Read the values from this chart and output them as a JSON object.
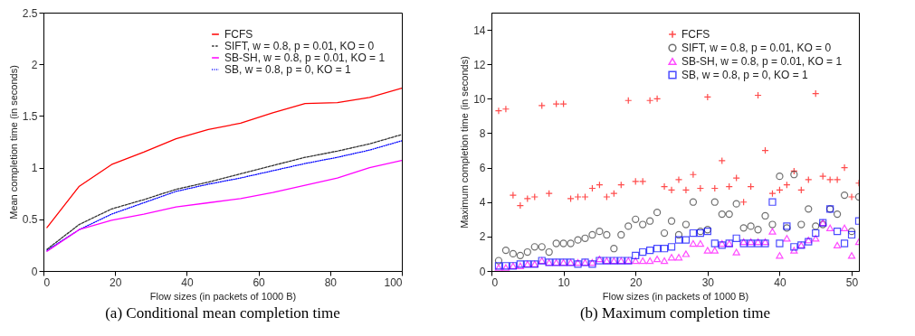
{
  "chart_data": [
    {
      "type": "line",
      "title": "(a) Conditional mean completion time",
      "xlabel": "Flow sizes (in packets of 1000 B)",
      "ylabel": "Mean completion time (in seconds)",
      "xlim": [
        0,
        100
      ],
      "xticks": [
        0,
        20,
        40,
        60,
        80,
        100
      ],
      "ylim": [
        0,
        2.5
      ],
      "yticks": [
        0,
        0.5,
        1,
        1.5,
        2,
        2.5
      ],
      "legend": "top right",
      "x": [
        1,
        10,
        19,
        28,
        37,
        46,
        55,
        64,
        73,
        82,
        91,
        100
      ],
      "series": [
        {
          "name": "FCFS",
          "color": "#ff0000",
          "line_style": "solid",
          "values": [
            0.42,
            0.82,
            1.03,
            1.15,
            1.28,
            1.37,
            1.43,
            1.53,
            1.62,
            1.63,
            1.68,
            1.77
          ]
        },
        {
          "name": "SIFT, w = 0.8, p = 0.01, KO = 0",
          "color": "#333333",
          "line_style": "dashed",
          "values": [
            0.21,
            0.45,
            0.6,
            0.69,
            0.79,
            0.86,
            0.94,
            1.02,
            1.1,
            1.16,
            1.23,
            1.32
          ]
        },
        {
          "name": "SB-SH, w = 0.8, p = 0.01, KO = 1",
          "color": "#ff00ff",
          "line_style": "solid",
          "values": [
            0.19,
            0.4,
            0.49,
            0.55,
            0.62,
            0.66,
            0.7,
            0.76,
            0.83,
            0.9,
            1.0,
            1.07
          ]
        },
        {
          "name": "SB, w = 0.8, p = 0, KO = 1",
          "color": "#0000ff",
          "line_style": "dotted",
          "values": [
            0.2,
            0.4,
            0.55,
            0.66,
            0.77,
            0.84,
            0.9,
            0.97,
            1.04,
            1.1,
            1.17,
            1.26
          ]
        }
      ]
    },
    {
      "type": "scatter",
      "title": "(b) Maximum completion time",
      "xlabel": "Flow sizes (in packets of 1000 B)",
      "ylabel": "Maximum completion time (in seconds)",
      "xlim": [
        0,
        51
      ],
      "xticks": [
        0,
        10,
        20,
        30,
        40,
        50
      ],
      "ylim": [
        0,
        15
      ],
      "yticks": [
        0,
        2,
        4,
        6,
        8,
        10,
        12,
        14
      ],
      "legend": "top right",
      "x": [
        1,
        2,
        3,
        4,
        5,
        6,
        7,
        8,
        9,
        10,
        11,
        12,
        13,
        14,
        15,
        16,
        17,
        18,
        19,
        20,
        21,
        22,
        23,
        24,
        25,
        26,
        27,
        28,
        29,
        30,
        31,
        32,
        33,
        34,
        35,
        36,
        37,
        38,
        39,
        40,
        41,
        42,
        43,
        44,
        45,
        46,
        47,
        48,
        49,
        50,
        51
      ],
      "series": [
        {
          "name": "FCFS",
          "color": "#ff0000",
          "marker": "cross",
          "values": [
            9.3,
            9.4,
            4.4,
            3.8,
            4.2,
            4.3,
            9.6,
            4.5,
            9.7,
            9.7,
            4.2,
            4.3,
            4.3,
            4.8,
            5.0,
            4.3,
            4.5,
            5.0,
            9.9,
            5.2,
            5.2,
            9.9,
            10.0,
            4.9,
            4.7,
            5.3,
            4.7,
            5.6,
            4.8,
            10.1,
            4.8,
            6.4,
            4.9,
            5.4,
            4.0,
            4.9,
            10.2,
            7.0,
            4.5,
            4.7,
            5.0,
            5.8,
            4.7,
            5.3,
            10.3,
            5.5,
            5.3,
            5.3,
            6.0,
            4.3,
            5.1
          ]
        },
        {
          "name": "SIFT, w = 0.8, p = 0.01, KO = 0",
          "color": "#333333",
          "marker": "circle",
          "values": [
            0.6,
            1.2,
            1.0,
            0.9,
            1.1,
            1.4,
            1.4,
            1.1,
            1.6,
            1.6,
            1.6,
            1.8,
            1.9,
            2.1,
            2.3,
            2.1,
            1.3,
            2.1,
            2.6,
            3.0,
            2.7,
            2.9,
            3.4,
            2.2,
            2.9,
            2.1,
            2.7,
            4.0,
            2.3,
            2.4,
            4.0,
            3.3,
            3.3,
            3.9,
            2.5,
            2.6,
            2.4,
            3.2,
            2.7,
            5.5,
            2.5,
            5.6,
            2.7,
            3.6,
            2.6,
            2.7,
            3.6,
            3.3,
            4.4,
            2.3,
            4.3
          ]
        },
        {
          "name": "SB-SH, w = 0.8, p = 0.01, KO = 1",
          "color": "#ff00ff",
          "marker": "triangle",
          "values": [
            0.2,
            0.2,
            0.3,
            0.3,
            0.4,
            0.4,
            0.6,
            0.5,
            0.5,
            0.5,
            0.5,
            0.5,
            0.5,
            0.5,
            0.7,
            0.6,
            0.6,
            0.6,
            0.6,
            0.6,
            0.6,
            0.6,
            0.7,
            0.6,
            0.8,
            0.8,
            1.0,
            1.6,
            1.6,
            1.2,
            1.2,
            1.6,
            1.6,
            1.1,
            1.7,
            1.7,
            1.7,
            1.7,
            2.3,
            0.9,
            1.9,
            1.2,
            1.5,
            1.8,
            1.9,
            2.8,
            2.5,
            1.5,
            2.5,
            0.9,
            1.7
          ]
        },
        {
          "name": "SB, w = 0.8, p = 0, KO = 1",
          "color": "#0000ff",
          "marker": "square",
          "values": [
            0.3,
            0.3,
            0.3,
            0.4,
            0.4,
            0.4,
            0.6,
            0.5,
            0.5,
            0.5,
            0.5,
            0.4,
            0.5,
            0.4,
            0.6,
            0.6,
            0.6,
            0.6,
            0.6,
            0.9,
            1.1,
            1.2,
            1.3,
            1.3,
            1.4,
            1.8,
            1.8,
            2.2,
            2.2,
            2.3,
            1.6,
            1.5,
            1.6,
            1.9,
            1.6,
            1.6,
            1.6,
            1.6,
            4.0,
            1.6,
            2.6,
            1.4,
            1.5,
            1.7,
            2.2,
            2.8,
            3.6,
            2.3,
            1.6,
            2.1,
            2.9
          ]
        }
      ]
    }
  ]
}
